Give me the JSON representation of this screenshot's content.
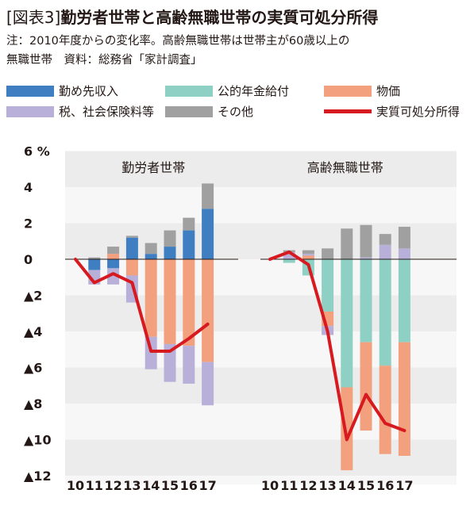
{
  "header": {
    "tag": "[図表3]",
    "title": "勤労者世帯と高齢無職世帯の実質可処分所得",
    "note_line1": "注：2010年度からの変化率。高齢無職世帯は世帯主が60歳以上の",
    "note_line2": "無職世帯　資料：総務省「家計調査」"
  },
  "legend": [
    {
      "key": "wage",
      "label": "勤め先収入",
      "color": "#3f7fc1",
      "kind": "box"
    },
    {
      "key": "pension",
      "label": "公的年金給付",
      "color": "#8ed1c4",
      "kind": "box"
    },
    {
      "key": "price",
      "label": "物価",
      "color": "#f2a07d",
      "kind": "box"
    },
    {
      "key": "tax",
      "label": "税、社会保険料等",
      "color": "#b8b0d9",
      "kind": "box"
    },
    {
      "key": "other",
      "label": "その他",
      "color": "#a0a0a0",
      "kind": "box"
    },
    {
      "key": "real",
      "label": "実質可処分所得",
      "color": "#d71920",
      "kind": "line"
    }
  ],
  "chart_data": {
    "type": "bar",
    "stacked": true,
    "y_unit": "%",
    "ylim": [
      -12.5,
      6.5
    ],
    "y_ticks": [
      {
        "value": 6,
        "label": "6 %"
      },
      {
        "value": 4,
        "label": "4"
      },
      {
        "value": 2,
        "label": "2"
      },
      {
        "value": 0,
        "label": "0"
      },
      {
        "value": -2,
        "label": "▲2"
      },
      {
        "value": -4,
        "label": "▲4"
      },
      {
        "value": -6,
        "label": "▲6"
      },
      {
        "value": -8,
        "label": "▲8"
      },
      {
        "value": -10,
        "label": "▲10"
      },
      {
        "value": -12,
        "label": "▲12"
      }
    ],
    "panels": [
      {
        "title": "勤労者世帯",
        "categories": [
          "10",
          "11",
          "12",
          "13",
          "14",
          "15",
          "16",
          "17"
        ],
        "series": [
          {
            "key": "wage",
            "values": [
              0,
              -0.6,
              -0.5,
              1.2,
              0.3,
              0.7,
              1.6,
              2.8
            ]
          },
          {
            "key": "pension",
            "values": [
              0,
              0,
              0,
              0,
              0,
              0,
              0,
              0
            ]
          },
          {
            "key": "price",
            "values": [
              0,
              0,
              0.3,
              -0.9,
              -4.3,
              -4.7,
              -4.8,
              -5.7
            ]
          },
          {
            "key": "tax",
            "values": [
              0,
              -0.8,
              -0.9,
              -1.5,
              -1.8,
              -2.1,
              -2.1,
              -2.4
            ]
          },
          {
            "key": "other",
            "values": [
              0,
              0.1,
              0.4,
              0.1,
              0.6,
              0.9,
              0.7,
              1.4
            ]
          }
        ],
        "real": [
          0,
          -1.3,
          -0.8,
          -1.3,
          -5.1,
          -5.1,
          -4.4,
          -3.6
        ]
      },
      {
        "title": "高齢無職世帯",
        "categories": [
          "10",
          "11",
          "12",
          "13",
          "14",
          "15",
          "16",
          "17"
        ],
        "series": [
          {
            "key": "wage",
            "values": [
              0,
              0,
              0,
              0,
              0,
              0,
              0,
              0
            ]
          },
          {
            "key": "pension",
            "values": [
              0,
              -0.2,
              -0.9,
              -2.9,
              -7.1,
              -4.6,
              -5.9,
              -4.6
            ]
          },
          {
            "key": "price",
            "values": [
              0,
              0,
              0.2,
              -0.8,
              -4.6,
              -4.9,
              -4.9,
              -6.3
            ]
          },
          {
            "key": "tax",
            "values": [
              0,
              0.4,
              0.1,
              -0.5,
              0,
              0.1,
              0.8,
              0.6
            ]
          },
          {
            "key": "other",
            "values": [
              0,
              0.1,
              0.2,
              0.6,
              1.7,
              1.8,
              0.6,
              1.2
            ]
          }
        ],
        "real": [
          0,
          0.4,
          -0.3,
          -4.0,
          -10.0,
          -7.5,
          -9.1,
          -9.5
        ]
      }
    ]
  }
}
